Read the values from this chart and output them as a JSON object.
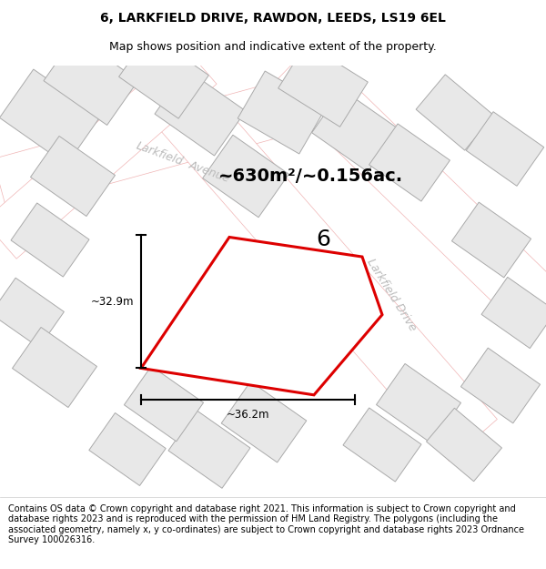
{
  "title": "6, LARKFIELD DRIVE, RAWDON, LEEDS, LS19 6EL",
  "subtitle": "Map shows position and indicative extent of the property.",
  "footer": "Contains OS data © Crown copyright and database right 2021. This information is subject to Crown copyright and database rights 2023 and is reproduced with the permission of HM Land Registry. The polygons (including the associated geometry, namely x, y co-ordinates) are subject to Crown copyright and database rights 2023 Ordnance Survey 100026316.",
  "area_label": "~630m²/~0.156ac.",
  "plot_number": "6",
  "width_label": "~36.2m",
  "height_label": "~32.9m",
  "map_bg": "#ffffff",
  "building_fill": "#e8e8e8",
  "building_edge": "#aaaaaa",
  "plot_fill": "#ffffff",
  "plot_edge": "#dd0000",
  "street_label_color": "#bbbbbb",
  "road_outline_color": "#f0b4b4",
  "title_fontsize": 10,
  "subtitle_fontsize": 9,
  "footer_fontsize": 7.0,
  "area_fontsize": 14,
  "plot_num_fontsize": 18,
  "measure_fontsize": 8.5
}
